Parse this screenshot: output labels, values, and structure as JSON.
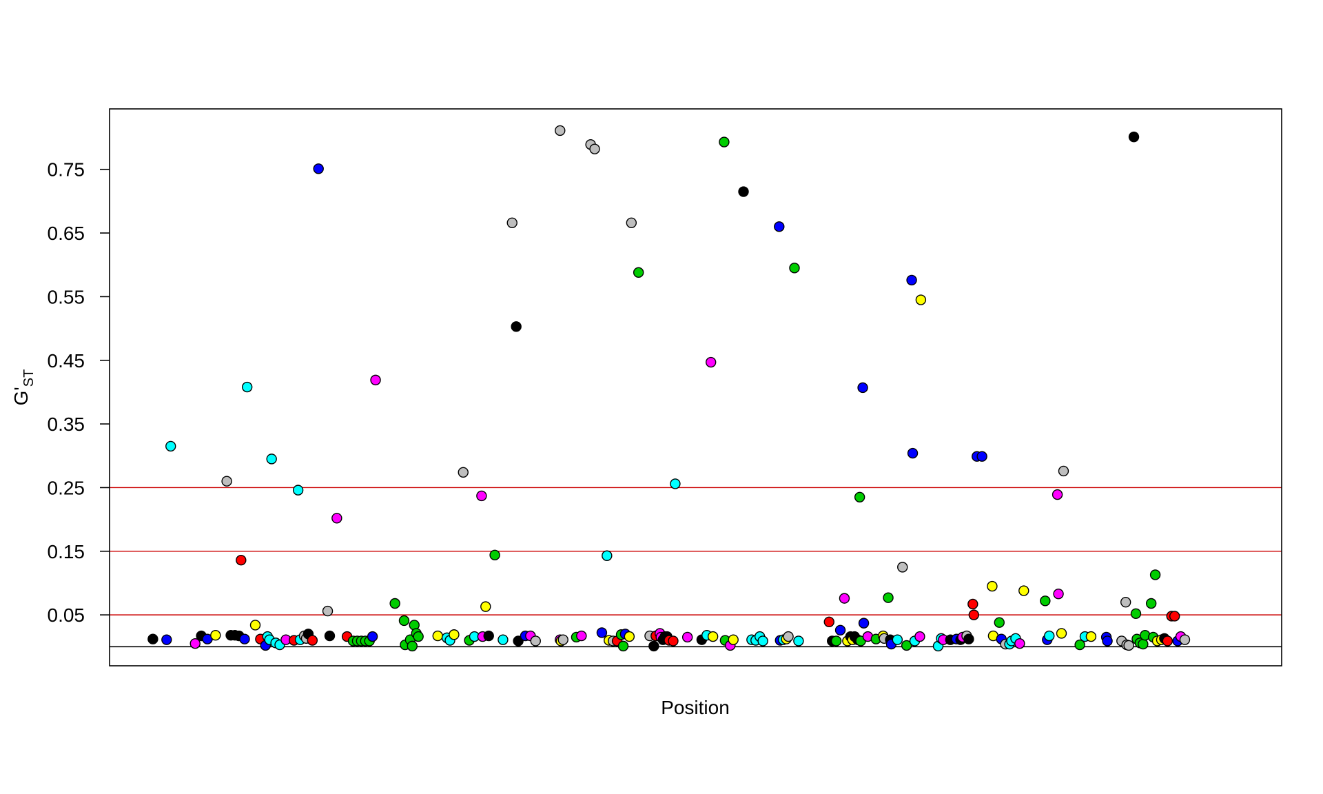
{
  "chart_data": {
    "type": "scatter",
    "title": "",
    "xlabel": "Position",
    "ylabel_main": "G'",
    "ylabel_sub": "ST",
    "xlim": [
      0,
      230
    ],
    "ylim": [
      -0.03,
      0.845
    ],
    "yticks": [
      0.05,
      0.15,
      0.25,
      0.35,
      0.45,
      0.55,
      0.65,
      0.75
    ],
    "ytick_labels": [
      "0.05",
      "0.15",
      "0.25",
      "0.35",
      "0.45",
      "0.55",
      "0.65",
      "0.75"
    ],
    "grid": false,
    "legend": "none",
    "reference_lines": [
      {
        "y": 0.0,
        "color": "#000000"
      },
      {
        "y": 0.05,
        "color": "#cc0000"
      },
      {
        "y": 0.15,
        "color": "#cc0000"
      },
      {
        "y": 0.25,
        "color": "#cc0000"
      }
    ],
    "colors": {
      "black": "#000000",
      "blue": "#0000ff",
      "cyan": "#00ffff",
      "gray": "#bebebe",
      "red": "#ff0000",
      "magenta": "#ff00ff",
      "green": "#00cd00",
      "yellow": "#ffff00"
    },
    "points": [
      {
        "x": 8.5,
        "y": 0.012,
        "c": "black"
      },
      {
        "x": 11.2,
        "y": 0.011,
        "c": "blue"
      },
      {
        "x": 12.0,
        "y": 0.315,
        "c": "cyan"
      },
      {
        "x": 16.8,
        "y": 0.005,
        "c": "magenta"
      },
      {
        "x": 18.0,
        "y": 0.017,
        "c": "black"
      },
      {
        "x": 19.2,
        "y": 0.012,
        "c": "blue"
      },
      {
        "x": 20.8,
        "y": 0.018,
        "c": "yellow"
      },
      {
        "x": 23.0,
        "y": 0.26,
        "c": "gray"
      },
      {
        "x": 23.8,
        "y": 0.018,
        "c": "black"
      },
      {
        "x": 24.6,
        "y": 0.018,
        "c": "black"
      },
      {
        "x": 25.4,
        "y": 0.017,
        "c": "black"
      },
      {
        "x": 25.8,
        "y": 0.136,
        "c": "red"
      },
      {
        "x": 26.5,
        "y": 0.012,
        "c": "blue"
      },
      {
        "x": 27.0,
        "y": 0.408,
        "c": "cyan"
      },
      {
        "x": 28.6,
        "y": 0.034,
        "c": "yellow"
      },
      {
        "x": 29.6,
        "y": 0.012,
        "c": "red"
      },
      {
        "x": 30.6,
        "y": 0.002,
        "c": "blue"
      },
      {
        "x": 31.0,
        "y": 0.016,
        "c": "cyan"
      },
      {
        "x": 31.4,
        "y": 0.011,
        "c": "cyan"
      },
      {
        "x": 31.8,
        "y": 0.295,
        "c": "cyan"
      },
      {
        "x": 32.6,
        "y": 0.006,
        "c": "cyan"
      },
      {
        "x": 33.4,
        "y": 0.003,
        "c": "cyan"
      },
      {
        "x": 34.6,
        "y": 0.011,
        "c": "magenta"
      },
      {
        "x": 36.2,
        "y": 0.01,
        "c": "red"
      },
      {
        "x": 37.0,
        "y": 0.246,
        "c": "cyan"
      },
      {
        "x": 37.4,
        "y": 0.011,
        "c": "cyan"
      },
      {
        "x": 38.2,
        "y": 0.017,
        "c": "gray"
      },
      {
        "x": 38.6,
        "y": 0.013,
        "c": "gray"
      },
      {
        "x": 39.0,
        "y": 0.02,
        "c": "black"
      },
      {
        "x": 39.8,
        "y": 0.01,
        "c": "red"
      },
      {
        "x": 41.0,
        "y": 0.751,
        "c": "blue"
      },
      {
        "x": 42.8,
        "y": 0.056,
        "c": "gray"
      },
      {
        "x": 43.2,
        "y": 0.017,
        "c": "black"
      },
      {
        "x": 44.6,
        "y": 0.202,
        "c": "magenta"
      },
      {
        "x": 46.6,
        "y": 0.016,
        "c": "red"
      },
      {
        "x": 47.8,
        "y": 0.009,
        "c": "green"
      },
      {
        "x": 48.6,
        "y": 0.009,
        "c": "green"
      },
      {
        "x": 49.4,
        "y": 0.009,
        "c": "green"
      },
      {
        "x": 50.2,
        "y": 0.009,
        "c": "green"
      },
      {
        "x": 51.0,
        "y": 0.009,
        "c": "green"
      },
      {
        "x": 51.6,
        "y": 0.016,
        "c": "blue"
      },
      {
        "x": 52.2,
        "y": 0.419,
        "c": "magenta"
      },
      {
        "x": 56.0,
        "y": 0.068,
        "c": "green"
      },
      {
        "x": 57.8,
        "y": 0.041,
        "c": "green"
      },
      {
        "x": 58.0,
        "y": 0.003,
        "c": "green"
      },
      {
        "x": 59.0,
        "y": 0.011,
        "c": "green"
      },
      {
        "x": 59.4,
        "y": 0.001,
        "c": "green"
      },
      {
        "x": 59.8,
        "y": 0.034,
        "c": "green"
      },
      {
        "x": 60.2,
        "y": 0.021,
        "c": "green"
      },
      {
        "x": 60.6,
        "y": 0.016,
        "c": "green"
      },
      {
        "x": 64.4,
        "y": 0.017,
        "c": "yellow"
      },
      {
        "x": 66.2,
        "y": 0.014,
        "c": "cyan"
      },
      {
        "x": 66.8,
        "y": 0.01,
        "c": "cyan"
      },
      {
        "x": 67.6,
        "y": 0.019,
        "c": "yellow"
      },
      {
        "x": 69.4,
        "y": 0.274,
        "c": "gray"
      },
      {
        "x": 70.6,
        "y": 0.01,
        "c": "green"
      },
      {
        "x": 71.6,
        "y": 0.016,
        "c": "cyan"
      },
      {
        "x": 73.0,
        "y": 0.237,
        "c": "magenta"
      },
      {
        "x": 73.2,
        "y": 0.016,
        "c": "magenta"
      },
      {
        "x": 73.8,
        "y": 0.063,
        "c": "yellow"
      },
      {
        "x": 74.4,
        "y": 0.017,
        "c": "black"
      },
      {
        "x": 75.6,
        "y": 0.144,
        "c": "green"
      },
      {
        "x": 77.2,
        "y": 0.011,
        "c": "cyan"
      },
      {
        "x": 79.0,
        "y": 0.666,
        "c": "gray"
      },
      {
        "x": 79.8,
        "y": 0.503,
        "c": "black"
      },
      {
        "x": 80.2,
        "y": 0.009,
        "c": "black"
      },
      {
        "x": 81.6,
        "y": 0.017,
        "c": "blue"
      },
      {
        "x": 82.6,
        "y": 0.017,
        "c": "magenta"
      },
      {
        "x": 83.6,
        "y": 0.009,
        "c": "gray"
      },
      {
        "x": 88.4,
        "y": 0.811,
        "c": "gray"
      },
      {
        "x": 88.4,
        "y": 0.011,
        "c": "magenta"
      },
      {
        "x": 88.6,
        "y": 0.009,
        "c": "yellow"
      },
      {
        "x": 89.0,
        "y": 0.011,
        "c": "gray"
      },
      {
        "x": 91.6,
        "y": 0.015,
        "c": "green"
      },
      {
        "x": 92.6,
        "y": 0.017,
        "c": "magenta"
      },
      {
        "x": 94.4,
        "y": 0.789,
        "c": "gray"
      },
      {
        "x": 95.2,
        "y": 0.782,
        "c": "gray"
      },
      {
        "x": 96.6,
        "y": 0.022,
        "c": "blue"
      },
      {
        "x": 97.6,
        "y": 0.143,
        "c": "cyan"
      },
      {
        "x": 98.0,
        "y": 0.01,
        "c": "yellow"
      },
      {
        "x": 98.8,
        "y": 0.009,
        "c": "gray"
      },
      {
        "x": 99.6,
        "y": 0.009,
        "c": "red"
      },
      {
        "x": 100.4,
        "y": 0.019,
        "c": "green"
      },
      {
        "x": 100.8,
        "y": 0.001,
        "c": "green"
      },
      {
        "x": 101.2,
        "y": 0.02,
        "c": "blue"
      },
      {
        "x": 102.0,
        "y": 0.016,
        "c": "yellow"
      },
      {
        "x": 102.4,
        "y": 0.666,
        "c": "gray"
      },
      {
        "x": 103.8,
        "y": 0.588,
        "c": "green"
      },
      {
        "x": 106.0,
        "y": 0.017,
        "c": "gray"
      },
      {
        "x": 106.8,
        "y": 0.001,
        "c": "black"
      },
      {
        "x": 107.2,
        "y": 0.017,
        "c": "red"
      },
      {
        "x": 108.0,
        "y": 0.021,
        "c": "magenta"
      },
      {
        "x": 108.2,
        "y": 0.015,
        "c": "magenta"
      },
      {
        "x": 108.6,
        "y": 0.011,
        "c": "black"
      },
      {
        "x": 109.0,
        "y": 0.016,
        "c": "black"
      },
      {
        "x": 109.4,
        "y": 0.016,
        "c": "black"
      },
      {
        "x": 109.8,
        "y": 0.01,
        "c": "red"
      },
      {
        "x": 110.6,
        "y": 0.009,
        "c": "red"
      },
      {
        "x": 111.0,
        "y": 0.256,
        "c": "cyan"
      },
      {
        "x": 113.4,
        "y": 0.015,
        "c": "magenta"
      },
      {
        "x": 116.2,
        "y": 0.011,
        "c": "black"
      },
      {
        "x": 117.2,
        "y": 0.018,
        "c": "cyan"
      },
      {
        "x": 118.0,
        "y": 0.447,
        "c": "magenta"
      },
      {
        "x": 118.4,
        "y": 0.016,
        "c": "yellow"
      },
      {
        "x": 120.6,
        "y": 0.793,
        "c": "green"
      },
      {
        "x": 120.8,
        "y": 0.01,
        "c": "green"
      },
      {
        "x": 121.8,
        "y": 0.002,
        "c": "magenta"
      },
      {
        "x": 122.4,
        "y": 0.011,
        "c": "yellow"
      },
      {
        "x": 124.4,
        "y": 0.715,
        "c": "black"
      },
      {
        "x": 126.0,
        "y": 0.011,
        "c": "cyan"
      },
      {
        "x": 126.8,
        "y": 0.01,
        "c": "cyan"
      },
      {
        "x": 127.6,
        "y": 0.016,
        "c": "cyan"
      },
      {
        "x": 128.2,
        "y": 0.009,
        "c": "cyan"
      },
      {
        "x": 131.4,
        "y": 0.66,
        "c": "blue"
      },
      {
        "x": 131.6,
        "y": 0.01,
        "c": "blue"
      },
      {
        "x": 132.2,
        "y": 0.011,
        "c": "cyan"
      },
      {
        "x": 132.8,
        "y": 0.012,
        "c": "yellow"
      },
      {
        "x": 133.2,
        "y": 0.016,
        "c": "gray"
      },
      {
        "x": 134.4,
        "y": 0.595,
        "c": "green"
      },
      {
        "x": 135.2,
        "y": 0.009,
        "c": "cyan"
      },
      {
        "x": 141.2,
        "y": 0.039,
        "c": "red"
      },
      {
        "x": 141.8,
        "y": 0.009,
        "c": "black"
      },
      {
        "x": 142.6,
        "y": 0.009,
        "c": "green"
      },
      {
        "x": 143.4,
        "y": 0.026,
        "c": "blue"
      },
      {
        "x": 144.2,
        "y": 0.076,
        "c": "magenta"
      },
      {
        "x": 144.8,
        "y": 0.009,
        "c": "yellow"
      },
      {
        "x": 145.4,
        "y": 0.016,
        "c": "black"
      },
      {
        "x": 145.8,
        "y": 0.011,
        "c": "yellow"
      },
      {
        "x": 146.2,
        "y": 0.016,
        "c": "black"
      },
      {
        "x": 146.8,
        "y": 0.011,
        "c": "black"
      },
      {
        "x": 147.2,
        "y": 0.235,
        "c": "green"
      },
      {
        "x": 147.4,
        "y": 0.009,
        "c": "green"
      },
      {
        "x": 147.8,
        "y": 0.407,
        "c": "blue"
      },
      {
        "x": 148.0,
        "y": 0.037,
        "c": "blue"
      },
      {
        "x": 148.8,
        "y": 0.016,
        "c": "magenta"
      },
      {
        "x": 150.4,
        "y": 0.012,
        "c": "green"
      },
      {
        "x": 151.8,
        "y": 0.017,
        "c": "yellow"
      },
      {
        "x": 152.0,
        "y": 0.013,
        "c": "gray"
      },
      {
        "x": 152.8,
        "y": 0.077,
        "c": "green"
      },
      {
        "x": 153.2,
        "y": 0.011,
        "c": "black"
      },
      {
        "x": 153.4,
        "y": 0.004,
        "c": "blue"
      },
      {
        "x": 154.6,
        "y": 0.011,
        "c": "cyan"
      },
      {
        "x": 155.6,
        "y": 0.125,
        "c": "gray"
      },
      {
        "x": 156.4,
        "y": 0.002,
        "c": "green"
      },
      {
        "x": 157.4,
        "y": 0.576,
        "c": "blue"
      },
      {
        "x": 157.6,
        "y": 0.304,
        "c": "blue"
      },
      {
        "x": 158.0,
        "y": 0.009,
        "c": "cyan"
      },
      {
        "x": 159.0,
        "y": 0.016,
        "c": "magenta"
      },
      {
        "x": 159.2,
        "y": 0.545,
        "c": "yellow"
      },
      {
        "x": 162.6,
        "y": 0.001,
        "c": "cyan"
      },
      {
        "x": 163.2,
        "y": 0.013,
        "c": "cyan"
      },
      {
        "x": 163.6,
        "y": 0.011,
        "c": "magenta"
      },
      {
        "x": 165.0,
        "y": 0.011,
        "c": "black"
      },
      {
        "x": 166.2,
        "y": 0.012,
        "c": "blue"
      },
      {
        "x": 167.0,
        "y": 0.011,
        "c": "black"
      },
      {
        "x": 167.4,
        "y": 0.015,
        "c": "magenta"
      },
      {
        "x": 168.2,
        "y": 0.017,
        "c": "gray"
      },
      {
        "x": 168.6,
        "y": 0.012,
        "c": "black"
      },
      {
        "x": 169.4,
        "y": 0.067,
        "c": "red"
      },
      {
        "x": 169.6,
        "y": 0.05,
        "c": "red"
      },
      {
        "x": 170.2,
        "y": 0.299,
        "c": "blue"
      },
      {
        "x": 171.2,
        "y": 0.299,
        "c": "blue"
      },
      {
        "x": 173.2,
        "y": 0.095,
        "c": "yellow"
      },
      {
        "x": 173.4,
        "y": 0.017,
        "c": "yellow"
      },
      {
        "x": 174.6,
        "y": 0.038,
        "c": "green"
      },
      {
        "x": 175.0,
        "y": 0.012,
        "c": "blue"
      },
      {
        "x": 175.8,
        "y": 0.004,
        "c": "gray"
      },
      {
        "x": 176.6,
        "y": 0.004,
        "c": "cyan"
      },
      {
        "x": 177.0,
        "y": 0.009,
        "c": "cyan"
      },
      {
        "x": 177.8,
        "y": 0.013,
        "c": "cyan"
      },
      {
        "x": 178.6,
        "y": 0.005,
        "c": "magenta"
      },
      {
        "x": 179.4,
        "y": 0.088,
        "c": "yellow"
      },
      {
        "x": 183.6,
        "y": 0.072,
        "c": "green"
      },
      {
        "x": 184.0,
        "y": 0.011,
        "c": "blue"
      },
      {
        "x": 184.4,
        "y": 0.017,
        "c": "cyan"
      },
      {
        "x": 186.0,
        "y": 0.239,
        "c": "magenta"
      },
      {
        "x": 186.2,
        "y": 0.083,
        "c": "magenta"
      },
      {
        "x": 186.8,
        "y": 0.021,
        "c": "yellow"
      },
      {
        "x": 187.2,
        "y": 0.276,
        "c": "gray"
      },
      {
        "x": 190.4,
        "y": 0.003,
        "c": "green"
      },
      {
        "x": 191.4,
        "y": 0.016,
        "c": "cyan"
      },
      {
        "x": 192.6,
        "y": 0.016,
        "c": "yellow"
      },
      {
        "x": 195.6,
        "y": 0.015,
        "c": "blue"
      },
      {
        "x": 195.8,
        "y": 0.009,
        "c": "blue"
      },
      {
        "x": 198.6,
        "y": 0.009,
        "c": "gray"
      },
      {
        "x": 199.4,
        "y": 0.07,
        "c": "gray"
      },
      {
        "x": 199.6,
        "y": 0.003,
        "c": "gray"
      },
      {
        "x": 200.0,
        "y": 0.002,
        "c": "gray"
      },
      {
        "x": 201.0,
        "y": 0.801,
        "c": "black"
      },
      {
        "x": 201.4,
        "y": 0.052,
        "c": "green"
      },
      {
        "x": 201.6,
        "y": 0.012,
        "c": "green"
      },
      {
        "x": 202.2,
        "y": 0.006,
        "c": "green"
      },
      {
        "x": 202.8,
        "y": 0.004,
        "c": "green"
      },
      {
        "x": 203.2,
        "y": 0.018,
        "c": "green"
      },
      {
        "x": 204.4,
        "y": 0.068,
        "c": "green"
      },
      {
        "x": 204.8,
        "y": 0.015,
        "c": "green"
      },
      {
        "x": 205.2,
        "y": 0.113,
        "c": "green"
      },
      {
        "x": 205.6,
        "y": 0.009,
        "c": "yellow"
      },
      {
        "x": 206.4,
        "y": 0.011,
        "c": "yellow"
      },
      {
        "x": 207.0,
        "y": 0.013,
        "c": "black"
      },
      {
        "x": 207.6,
        "y": 0.009,
        "c": "red"
      },
      {
        "x": 208.4,
        "y": 0.048,
        "c": "red"
      },
      {
        "x": 209.0,
        "y": 0.048,
        "c": "red"
      },
      {
        "x": 209.6,
        "y": 0.009,
        "c": "blue"
      },
      {
        "x": 210.2,
        "y": 0.016,
        "c": "magenta"
      },
      {
        "x": 211.0,
        "y": 0.011,
        "c": "gray"
      }
    ]
  }
}
